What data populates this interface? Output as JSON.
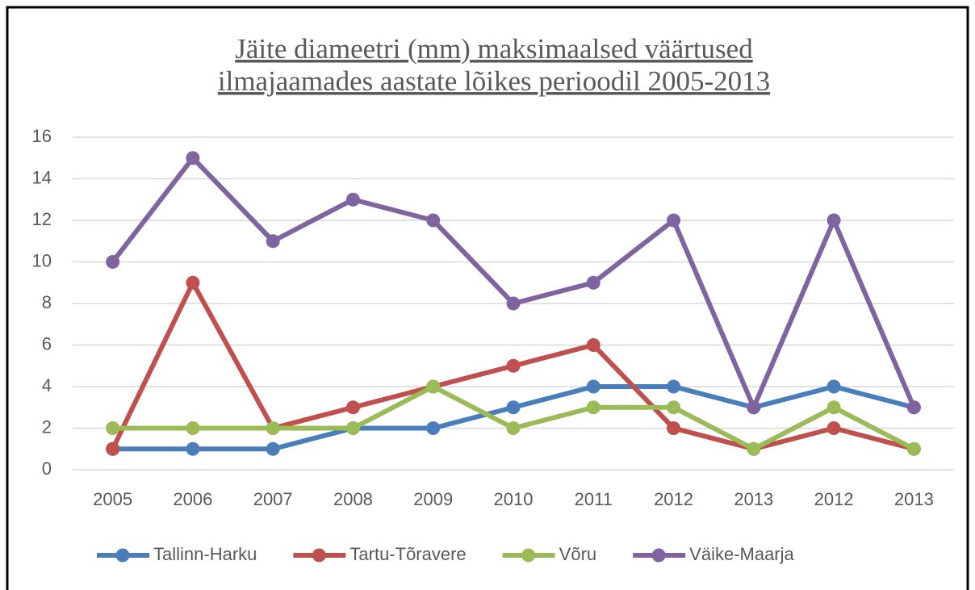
{
  "chart_data": {
    "type": "line",
    "title": [
      "Jäite diameetri (mm) maksimaalsed väärtused",
      "ilmajaamades aastate lõikes perioodil 2005-2013"
    ],
    "categories": [
      "2005",
      "2006",
      "2007",
      "2008",
      "2009",
      "2010",
      "2011",
      "2012",
      "2013",
      "2012",
      "2013"
    ],
    "series": [
      {
        "name": "Tallinn-Harku",
        "color": "#4a7ebb",
        "values": [
          1,
          1,
          1,
          2,
          2,
          3,
          4,
          4,
          3,
          4,
          3
        ]
      },
      {
        "name": "Tartu-Tõravere",
        "color": "#c0504d",
        "values": [
          1,
          9,
          2,
          3,
          4,
          5,
          6,
          2,
          1,
          2,
          1
        ]
      },
      {
        "name": "Võru",
        "color": "#9bbb59",
        "values": [
          2,
          2,
          2,
          2,
          4,
          2,
          3,
          3,
          1,
          3,
          1
        ]
      },
      {
        "name": "Väike-Maarja",
        "color": "#8064a2",
        "values": [
          10,
          15,
          11,
          13,
          12,
          8,
          9,
          12,
          3,
          12,
          3
        ]
      }
    ],
    "ylim": [
      0,
      16
    ],
    "yticks": [
      0,
      2,
      4,
      6,
      8,
      10,
      12,
      14,
      16
    ],
    "grid": true,
    "legend": "bottom"
  }
}
